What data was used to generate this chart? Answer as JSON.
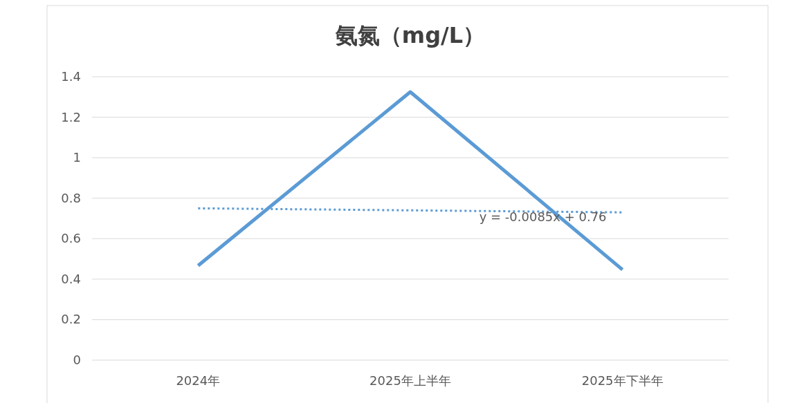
{
  "chart_data": {
    "type": "line",
    "title": "氨氮（mg/L）",
    "categories": [
      "2024年",
      "2025年上半年",
      "2025年下半年"
    ],
    "series": [
      {
        "color": "#5b9bd5",
        "values": [
          0.467,
          1.325,
          0.447
        ],
        "line_style": "solid"
      },
      {
        "type": "line",
        "color": "#5b9bd5",
        "values": [
          0.75,
          0.74,
          0.73
        ],
        "line_style": "dotted"
      }
    ],
    "ylim": [
      0,
      1.4
    ],
    "yticks": [
      0,
      0.2,
      0.4,
      0.6,
      0.8,
      1,
      1.2,
      1.4
    ],
    "grid": "y",
    "annotations": [
      {
        "text": "y = -0.0085x + 0.76",
        "x": "2025年下半年",
        "y": 0.73
      }
    ]
  }
}
